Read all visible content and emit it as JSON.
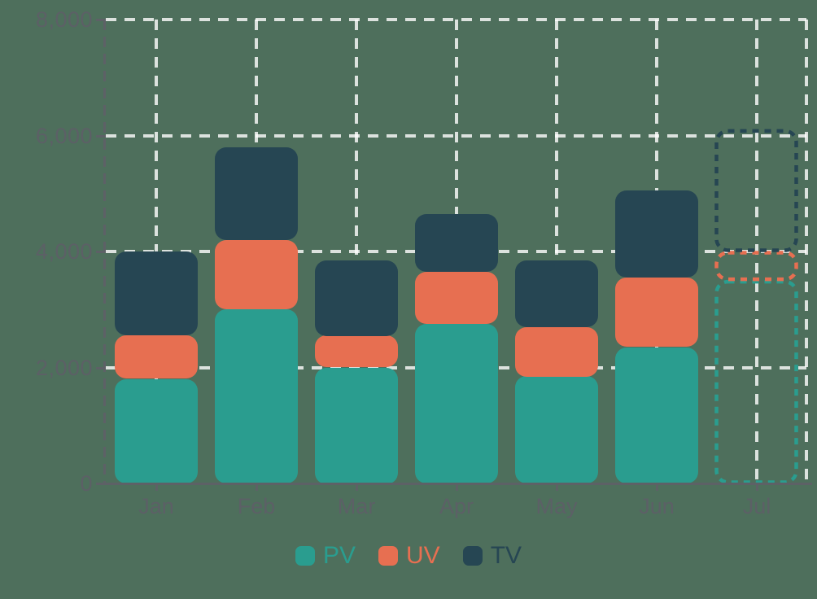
{
  "colors": {
    "background": "#4e6f5c",
    "grid": "rgba(255,255,255,0.8)",
    "axis": "#5d6166",
    "axis_label": "#5c6066"
  },
  "chart_data": {
    "type": "bar",
    "stacked": true,
    "title": "",
    "xlabel": "",
    "ylabel": "",
    "categories": [
      "Jan",
      "Feb",
      "Mar",
      "Apr",
      "May",
      "Jun",
      "Jul"
    ],
    "series": [
      {
        "name": "PV",
        "color": "#2a9d8f",
        "values": [
          1800,
          3000,
          2000,
          2750,
          1850,
          2350,
          3500
        ]
      },
      {
        "name": "UV",
        "color": "#e76f51",
        "values": [
          750,
          1200,
          550,
          900,
          850,
          1200,
          500
        ]
      },
      {
        "name": "TV",
        "color": "#264653",
        "values": [
          1450,
          1600,
          1300,
          1000,
          1150,
          1500,
          2100
        ]
      }
    ],
    "stack_totals": [
      4000,
      5800,
      3850,
      4650,
      3850,
      5050,
      6100
    ],
    "projected_categories": [
      "Jul"
    ],
    "projected_style": "dashed-outline",
    "ylim": [
      0,
      8000
    ],
    "y_tick_values": [
      0,
      2000,
      4000,
      6000,
      8000
    ],
    "y_tick_labels": [
      "0",
      "2,000",
      "4,000",
      "6,000",
      "8,000"
    ],
    "grid": "dashed",
    "legend_position": "bottom",
    "legend": [
      "PV",
      "UV",
      "TV"
    ]
  }
}
